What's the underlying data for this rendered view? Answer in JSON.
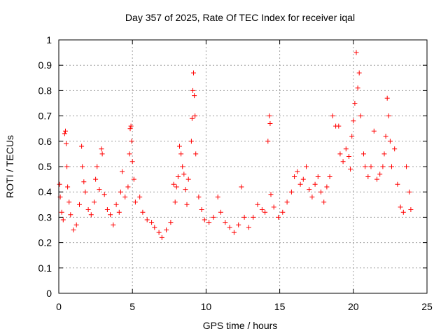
{
  "chart_data": {
    "type": "scatter",
    "title": "Day 357 of 2025, Rate Of TEC Index for receiver iqal",
    "xlabel": "GPS time / hours",
    "ylabel": "ROTI / TECUs",
    "xlim": [
      0,
      25
    ],
    "ylim": [
      0,
      1
    ],
    "x_ticks": [
      0,
      5,
      10,
      15,
      20,
      25
    ],
    "y_ticks": [
      0,
      0.1,
      0.2,
      0.3,
      0.4,
      0.5,
      0.6,
      0.7,
      0.8,
      0.9,
      1
    ],
    "x_tick_labels": [
      "0",
      "5",
      "10",
      "15",
      "20",
      "25"
    ],
    "y_tick_labels": [
      "0",
      "0.1",
      "0.2",
      "0.3",
      "0.4",
      "0.5",
      "0.6",
      "0.7",
      "0.8",
      "0.9",
      "1"
    ],
    "grid": true,
    "marker": "plus",
    "color": "#ff0000",
    "series": [
      {
        "name": "ROTI",
        "points": [
          [
            0.05,
            0.43
          ],
          [
            0.1,
            0.38
          ],
          [
            0.2,
            0.32
          ],
          [
            0.3,
            0.29
          ],
          [
            0.4,
            0.63
          ],
          [
            0.45,
            0.64
          ],
          [
            0.5,
            0.59
          ],
          [
            0.55,
            0.5
          ],
          [
            0.6,
            0.42
          ],
          [
            0.7,
            0.36
          ],
          [
            0.8,
            0.31
          ],
          [
            1.0,
            0.25
          ],
          [
            1.2,
            0.27
          ],
          [
            1.4,
            0.35
          ],
          [
            1.55,
            0.58
          ],
          [
            1.6,
            0.5
          ],
          [
            1.7,
            0.44
          ],
          [
            1.8,
            0.4
          ],
          [
            2.0,
            0.33
          ],
          [
            2.2,
            0.31
          ],
          [
            2.4,
            0.36
          ],
          [
            2.5,
            0.45
          ],
          [
            2.6,
            0.5
          ],
          [
            2.75,
            0.41
          ],
          [
            2.9,
            0.57
          ],
          [
            2.95,
            0.55
          ],
          [
            3.1,
            0.39
          ],
          [
            3.3,
            0.33
          ],
          [
            3.5,
            0.31
          ],
          [
            3.7,
            0.27
          ],
          [
            3.9,
            0.35
          ],
          [
            4.1,
            0.32
          ],
          [
            4.2,
            0.4
          ],
          [
            4.3,
            0.48
          ],
          [
            4.5,
            0.38
          ],
          [
            4.7,
            0.42
          ],
          [
            4.8,
            0.55
          ],
          [
            4.85,
            0.65
          ],
          [
            4.9,
            0.66
          ],
          [
            4.95,
            0.6
          ],
          [
            5.0,
            0.52
          ],
          [
            5.1,
            0.45
          ],
          [
            5.2,
            0.36
          ],
          [
            5.5,
            0.38
          ],
          [
            5.7,
            0.32
          ],
          [
            6.0,
            0.29
          ],
          [
            6.3,
            0.28
          ],
          [
            6.5,
            0.26
          ],
          [
            6.8,
            0.24
          ],
          [
            7.0,
            0.22
          ],
          [
            7.3,
            0.25
          ],
          [
            7.6,
            0.28
          ],
          [
            7.8,
            0.43
          ],
          [
            7.9,
            0.36
          ],
          [
            8.0,
            0.42
          ],
          [
            8.1,
            0.46
          ],
          [
            8.2,
            0.58
          ],
          [
            8.3,
            0.55
          ],
          [
            8.4,
            0.5
          ],
          [
            8.5,
            0.47
          ],
          [
            8.6,
            0.41
          ],
          [
            8.7,
            0.35
          ],
          [
            8.8,
            0.45
          ],
          [
            9.0,
            0.6
          ],
          [
            9.05,
            0.69
          ],
          [
            9.1,
            0.8
          ],
          [
            9.15,
            0.87
          ],
          [
            9.2,
            0.78
          ],
          [
            9.25,
            0.7
          ],
          [
            9.3,
            0.55
          ],
          [
            9.5,
            0.38
          ],
          [
            9.7,
            0.33
          ],
          [
            9.9,
            0.29
          ],
          [
            10.2,
            0.28
          ],
          [
            10.5,
            0.3
          ],
          [
            10.8,
            0.38
          ],
          [
            11.0,
            0.32
          ],
          [
            11.3,
            0.28
          ],
          [
            11.6,
            0.26
          ],
          [
            11.9,
            0.24
          ],
          [
            12.2,
            0.27
          ],
          [
            12.4,
            0.42
          ],
          [
            12.6,
            0.3
          ],
          [
            12.9,
            0.26
          ],
          [
            13.2,
            0.3
          ],
          [
            13.5,
            0.35
          ],
          [
            13.8,
            0.33
          ],
          [
            14.0,
            0.32
          ],
          [
            14.2,
            0.6
          ],
          [
            14.3,
            0.7
          ],
          [
            14.35,
            0.67
          ],
          [
            14.4,
            0.39
          ],
          [
            14.6,
            0.34
          ],
          [
            14.9,
            0.3
          ],
          [
            15.2,
            0.32
          ],
          [
            15.5,
            0.36
          ],
          [
            15.8,
            0.4
          ],
          [
            16.0,
            0.46
          ],
          [
            16.2,
            0.48
          ],
          [
            16.4,
            0.43
          ],
          [
            16.6,
            0.45
          ],
          [
            16.8,
            0.5
          ],
          [
            17.0,
            0.41
          ],
          [
            17.2,
            0.38
          ],
          [
            17.4,
            0.43
          ],
          [
            17.6,
            0.46
          ],
          [
            17.8,
            0.4
          ],
          [
            18.0,
            0.36
          ],
          [
            18.2,
            0.42
          ],
          [
            18.4,
            0.46
          ],
          [
            18.6,
            0.7
          ],
          [
            18.8,
            0.66
          ],
          [
            19.0,
            0.66
          ],
          [
            19.1,
            0.55
          ],
          [
            19.3,
            0.52
          ],
          [
            19.5,
            0.57
          ],
          [
            19.7,
            0.54
          ],
          [
            19.8,
            0.49
          ],
          [
            19.9,
            0.62
          ],
          [
            20.0,
            0.68
          ],
          [
            20.1,
            0.75
          ],
          [
            20.2,
            0.95
          ],
          [
            20.3,
            0.81
          ],
          [
            20.4,
            0.87
          ],
          [
            20.5,
            0.7
          ],
          [
            20.7,
            0.55
          ],
          [
            20.8,
            0.5
          ],
          [
            21.0,
            0.46
          ],
          [
            21.2,
            0.5
          ],
          [
            21.4,
            0.64
          ],
          [
            21.6,
            0.45
          ],
          [
            21.8,
            0.47
          ],
          [
            22.0,
            0.5
          ],
          [
            22.1,
            0.55
          ],
          [
            22.2,
            0.62
          ],
          [
            22.3,
            0.77
          ],
          [
            22.4,
            0.7
          ],
          [
            22.5,
            0.6
          ],
          [
            22.6,
            0.5
          ],
          [
            22.8,
            0.57
          ],
          [
            23.0,
            0.43
          ],
          [
            23.2,
            0.34
          ],
          [
            23.4,
            0.32
          ],
          [
            23.6,
            0.5
          ],
          [
            23.8,
            0.4
          ],
          [
            23.9,
            0.33
          ]
        ]
      }
    ]
  }
}
